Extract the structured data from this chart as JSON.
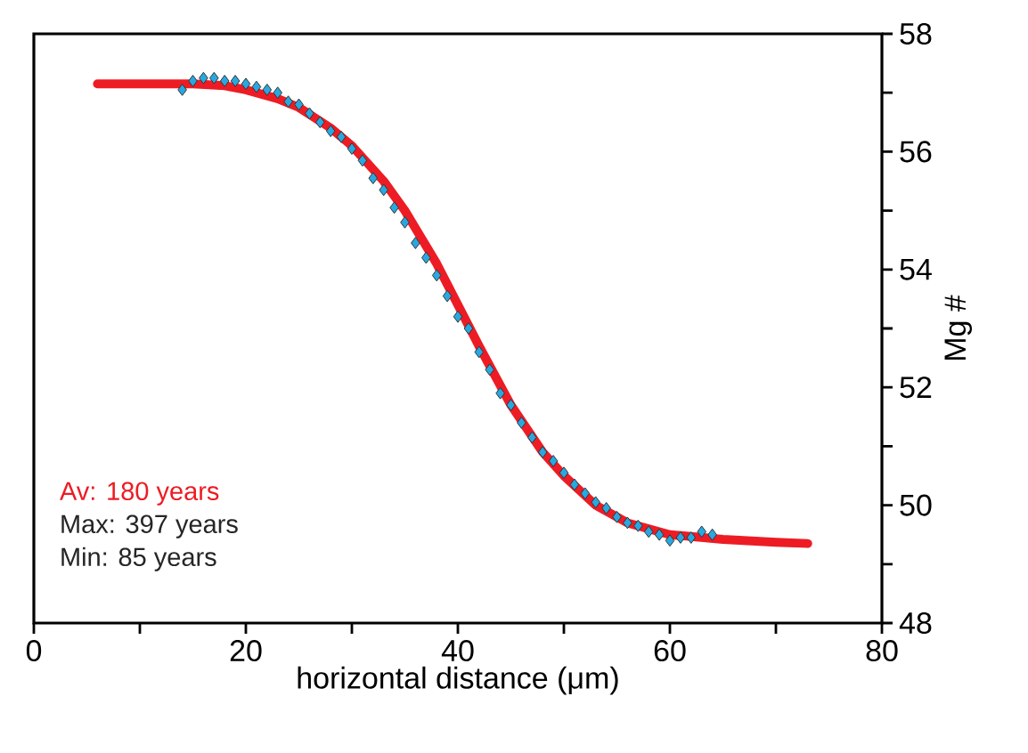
{
  "chart_data": {
    "type": "scatter",
    "xlabel": "horizontal distance (μm)",
    "ylabel": "Mg #",
    "xlim": [
      0,
      80
    ],
    "xticks": [
      0,
      20,
      40,
      60,
      80
    ],
    "ylim": [
      48,
      58
    ],
    "yticks": [
      48,
      50,
      52,
      54,
      56,
      58
    ],
    "series": [
      {
        "color": "#29a8e0",
        "marker": "diamond",
        "x": [
          14,
          15,
          16,
          17,
          18,
          19,
          20,
          21,
          22,
          23,
          24,
          25,
          26,
          27,
          28,
          29,
          30,
          31,
          32,
          33,
          34,
          35,
          36,
          37,
          38,
          39,
          40,
          41,
          42,
          43,
          44,
          45,
          46,
          47,
          48,
          49,
          50,
          51,
          52,
          53,
          54,
          55,
          56,
          57,
          58,
          59,
          60,
          61,
          62,
          63,
          64
        ],
        "values": [
          57.05,
          57.2,
          57.25,
          57.25,
          57.2,
          57.2,
          57.15,
          57.1,
          57.05,
          57.0,
          56.85,
          56.8,
          56.65,
          56.5,
          56.35,
          56.25,
          56.05,
          55.85,
          55.55,
          55.35,
          55.05,
          54.8,
          54.45,
          54.2,
          53.9,
          53.55,
          53.2,
          53.0,
          52.6,
          52.3,
          51.9,
          51.7,
          51.4,
          51.15,
          50.9,
          50.75,
          50.55,
          50.35,
          50.2,
          50.05,
          49.95,
          49.8,
          49.7,
          49.65,
          49.55,
          49.5,
          49.4,
          49.45,
          49.45,
          49.55,
          49.5
        ]
      },
      {
        "type": "line",
        "name": "Av: 180 years",
        "color": "#ed1c24",
        "marker": "none",
        "line_style": "solid",
        "x": [
          6,
          10,
          15,
          18,
          20,
          23,
          25,
          28,
          30,
          33,
          35,
          38,
          40,
          42,
          45,
          48,
          50,
          53,
          56,
          60,
          65,
          70,
          73
        ],
        "values": [
          57.15,
          57.15,
          57.15,
          57.12,
          57.05,
          56.9,
          56.75,
          56.4,
          56.1,
          55.5,
          55.0,
          54.1,
          53.4,
          52.7,
          51.7,
          50.9,
          50.5,
          50.0,
          49.7,
          49.5,
          49.42,
          49.37,
          49.35
        ]
      }
    ],
    "annotations": [
      "Max: 397 years",
      "Min: 85 years"
    ]
  }
}
